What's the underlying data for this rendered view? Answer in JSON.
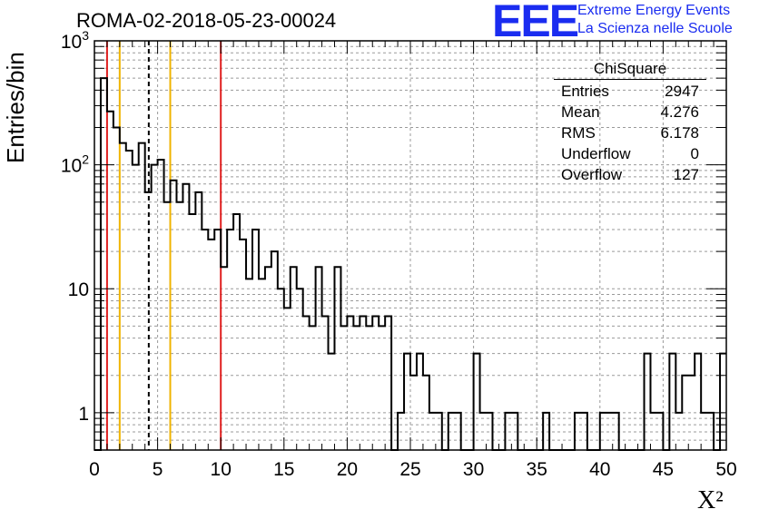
{
  "title": "ROMA-02-2018-05-23-00024",
  "logo": {
    "mark": "EEE",
    "line1": "Extreme Energy Events",
    "line2": "La Scienza nelle Scuole",
    "color": "#1a2cf0"
  },
  "stats": {
    "name": "ChiSquare",
    "rows": [
      {
        "label": "Entries",
        "value": "2947"
      },
      {
        "label": "Mean",
        "value": "4.276"
      },
      {
        "label": "RMS",
        "value": "6.178"
      },
      {
        "label": "Underflow",
        "value": "0"
      },
      {
        "label": "Overflow",
        "value": "127"
      }
    ]
  },
  "chart_data": {
    "type": "bar",
    "title": "ROMA-02-2018-05-23-00024",
    "xlabel": "X²",
    "ylabel": "Entries/bin",
    "xlim": [
      0,
      50
    ],
    "ylim": [
      0.5,
      1000
    ],
    "log_y": true,
    "grid": true,
    "bin_width": 0.5,
    "values": [
      0,
      500,
      270,
      200,
      150,
      130,
      100,
      150,
      60,
      100,
      110,
      50,
      75,
      50,
      70,
      40,
      60,
      30,
      25,
      30,
      15,
      30,
      40,
      25,
      12,
      30,
      12,
      15,
      20,
      10,
      7,
      15,
      10,
      6,
      5,
      15,
      6,
      3,
      15,
      5,
      6,
      5,
      6,
      5,
      6,
      5,
      6,
      0,
      1,
      3,
      2,
      3,
      2,
      1,
      1,
      0,
      1,
      1,
      0,
      0,
      3,
      1,
      1,
      0,
      0,
      1,
      1,
      0,
      0,
      0,
      0,
      1,
      0,
      0,
      0,
      0,
      1,
      1,
      0,
      0,
      1,
      1,
      1,
      0,
      0,
      0,
      0,
      3,
      1,
      1,
      0,
      3,
      1,
      2,
      2,
      3,
      1,
      1,
      0,
      3
    ],
    "x_ticks": [
      "0",
      "5",
      "10",
      "15",
      "20",
      "25",
      "30",
      "35",
      "40",
      "45",
      "50"
    ],
    "y_ticks": [
      "1",
      "10",
      "10²",
      "10³"
    ],
    "vlines": [
      {
        "x": 1.0,
        "color": "#e02020",
        "style": "solid"
      },
      {
        "x": 2.0,
        "color": "#f0b400",
        "style": "solid"
      },
      {
        "x": 4.3,
        "color": "#000000",
        "style": "dashed"
      },
      {
        "x": 6.0,
        "color": "#f0b400",
        "style": "solid"
      },
      {
        "x": 10.0,
        "color": "#e02020",
        "style": "solid"
      }
    ]
  }
}
